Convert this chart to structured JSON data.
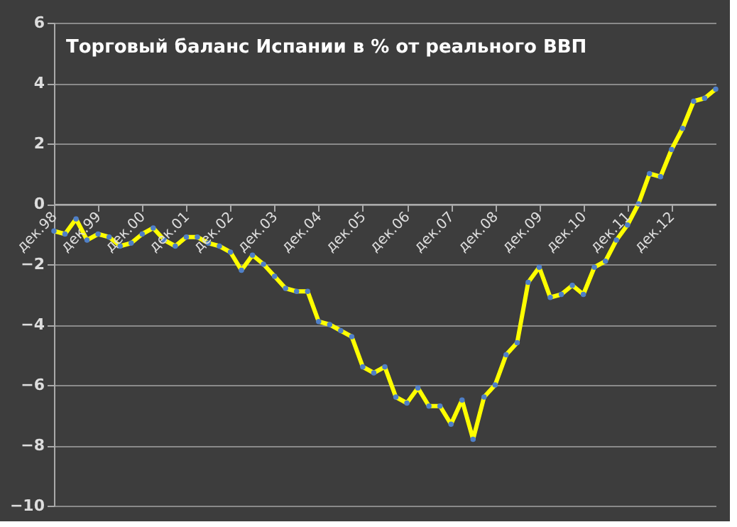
{
  "chart_data": {
    "type": "line",
    "title": "Торговый баланс Испании в % от реального ВВП",
    "categories": [
      "дек.98",
      null,
      null,
      null,
      "дек.99",
      null,
      null,
      null,
      "дек.00",
      null,
      null,
      null,
      "дек.01",
      null,
      null,
      null,
      "дек.02",
      null,
      null,
      null,
      "дек.03",
      null,
      null,
      null,
      "дек.04",
      null,
      null,
      null,
      "дек.05",
      null,
      null,
      null,
      "дек.06",
      null,
      null,
      null,
      "дек.07",
      null,
      null,
      null,
      "дек.08",
      null,
      null,
      null,
      "дек.09",
      null,
      null,
      null,
      "дек.10",
      null,
      null,
      null,
      "дек.11",
      null,
      null,
      null,
      "дек.12",
      null,
      null,
      null,
      null
    ],
    "series": [
      {
        "color": "#ffff00",
        "values": [
          -0.9,
          -1.0,
          -0.5,
          -1.2,
          -1.0,
          -1.1,
          -1.4,
          -1.3,
          -1.0,
          -0.8,
          -1.2,
          -1.4,
          -1.1,
          -1.1,
          -1.3,
          -1.4,
          -1.6,
          -2.2,
          -1.7,
          -2.0,
          -2.4,
          -2.8,
          -2.9,
          -2.9,
          -3.9,
          -4.0,
          -4.2,
          -4.4,
          -5.4,
          -5.6,
          -5.4,
          -6.4,
          -6.6,
          -6.1,
          -6.7,
          -6.7,
          -7.3,
          -6.5,
          -7.8,
          -6.4,
          -6.0,
          -5.0,
          -4.6,
          -2.6,
          -2.1,
          -3.1,
          -3.0,
          -2.7,
          -3.0,
          -2.1,
          -1.9,
          -1.2,
          -0.7,
          0.0,
          1.0,
          0.9,
          1.8,
          2.5,
          3.4,
          3.5,
          3.8
        ]
      }
    ],
    "ylim": [
      -10,
      6
    ],
    "yticks": [
      -10,
      -8,
      -6,
      -4,
      -2,
      0,
      2,
      4,
      6
    ],
    "grid": "y",
    "marker": "circle",
    "line_style": "solid"
  }
}
